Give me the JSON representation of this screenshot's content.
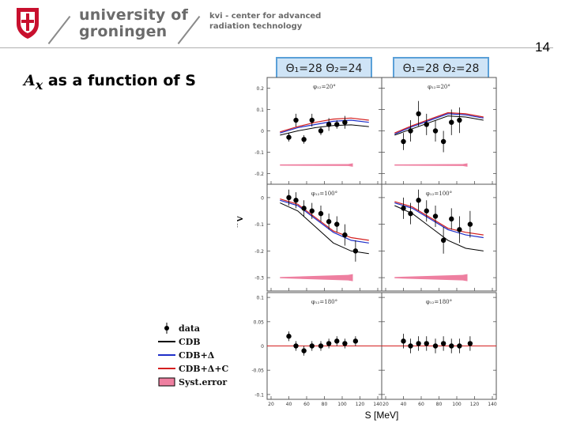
{
  "header": {
    "university_line1": "university of",
    "university_line2": "groningen",
    "kvi_line1": "kvi - center for advanced",
    "kvi_line2": "radiation technology",
    "crest_icon": "university-crest-icon"
  },
  "page_number": "14",
  "title": {
    "symbol": "A",
    "subscript": "x",
    "text": "as a function of S"
  },
  "angle_labels": [
    "Θ₁=28  Θ₂=24",
    "Θ₁=28  Θ₂=28"
  ],
  "legend": [
    {
      "label": "data",
      "kind": "data",
      "color": "#000000"
    },
    {
      "label": "CDB",
      "kind": "line",
      "color": "#000000"
    },
    {
      "label": "CDB+Δ",
      "kind": "line",
      "color": "#1f2fc8"
    },
    {
      "label": "CDB+Δ+C",
      "kind": "line",
      "color": "#d42020"
    },
    {
      "label": "Syst.error",
      "kind": "box",
      "color": "#ee7fa0"
    }
  ],
  "chart_data": {
    "type": "scatter",
    "ylabel": "Aₓ",
    "xlabel": "S [MeV]",
    "xlim": [
      20,
      140
    ],
    "x_ticks": [
      "20",
      "40",
      "60",
      "80",
      "100",
      "120",
      "140"
    ],
    "colors": {
      "data": "#000000",
      "cdb": "#000000",
      "cdb_delta": "#1f2fc8",
      "cdb_delta_c": "#d42020",
      "syst": "#ee7fa0"
    },
    "rows": [
      {
        "phi_label": "φ₁₂=20°",
        "ylim": [
          -0.25,
          0.25
        ],
        "y_ticks": [
          "0.2",
          "0.1",
          "0",
          "-0.1",
          "-0.2"
        ],
        "y_tick_values": [
          0.2,
          0.1,
          0,
          -0.1,
          -0.2
        ],
        "panels": [
          {
            "x": [
              40,
              48,
              57,
              66,
              76,
              85,
              94,
              103
            ],
            "y": [
              -0.03,
              0.05,
              -0.04,
              0.05,
              0.0,
              0.03,
              0.03,
              0.04
            ],
            "err": [
              0.02,
              0.03,
              0.02,
              0.03,
              0.02,
              0.03,
              0.02,
              0.03
            ],
            "x_curve": [
              30,
              50,
              70,
              90,
              110,
              130
            ],
            "cdb": [
              -0.02,
              0.0,
              0.015,
              0.025,
              0.028,
              0.02
            ],
            "cdb_delta": [
              -0.01,
              0.015,
              0.03,
              0.045,
              0.05,
              0.04
            ],
            "cdb_delta_c": [
              -0.005,
              0.02,
              0.04,
              0.055,
              0.06,
              0.05
            ],
            "syst": [
              -0.16,
              -0.16,
              -0.16,
              -0.16,
              -0.16,
              -0.16
            ]
          },
          {
            "x": [
              40,
              48,
              57,
              66,
              76,
              85,
              94,
              103
            ],
            "y": [
              -0.05,
              0.0,
              0.08,
              0.03,
              0.0,
              -0.05,
              0.04,
              0.05
            ],
            "err": [
              0.04,
              0.05,
              0.06,
              0.05,
              0.05,
              0.05,
              0.06,
              0.06
            ],
            "x_curve": [
              30,
              50,
              70,
              90,
              110,
              130
            ],
            "cdb": [
              -0.02,
              0.01,
              0.04,
              0.07,
              0.065,
              0.05
            ],
            "cdb_delta": [
              -0.015,
              0.02,
              0.05,
              0.08,
              0.075,
              0.06
            ],
            "cdb_delta_c": [
              -0.01,
              0.025,
              0.055,
              0.085,
              0.08,
              0.065
            ],
            "syst": [
              -0.16,
              -0.16,
              -0.16,
              -0.16,
              -0.16,
              -0.16
            ]
          }
        ]
      },
      {
        "phi_label": "φ₁₂=100°",
        "ylim": [
          -0.35,
          0.05
        ],
        "y_ticks": [
          "0",
          "-0.1",
          "-0.2",
          "-0.3"
        ],
        "y_tick_values": [
          0,
          -0.1,
          -0.2,
          -0.3
        ],
        "panels": [
          {
            "x": [
              40,
              48,
              57,
              66,
              76,
              85,
              94,
              103,
              115
            ],
            "y": [
              0.0,
              -0.01,
              -0.04,
              -0.05,
              -0.06,
              -0.09,
              -0.1,
              -0.14,
              -0.2
            ],
            "err": [
              0.03,
              0.03,
              0.03,
              0.03,
              0.03,
              0.03,
              0.03,
              0.04,
              0.04
            ],
            "x_curve": [
              30,
              50,
              70,
              90,
              110,
              130
            ],
            "cdb": [
              -0.02,
              -0.05,
              -0.11,
              -0.17,
              -0.2,
              -0.21
            ],
            "cdb_delta": [
              -0.01,
              -0.03,
              -0.08,
              -0.13,
              -0.16,
              -0.17
            ],
            "cdb_delta_c": [
              -0.005,
              -0.025,
              -0.075,
              -0.125,
              -0.15,
              -0.16
            ],
            "syst": [
              -0.3,
              -0.3,
              -0.3,
              -0.3,
              -0.3,
              -0.3
            ]
          },
          {
            "x": [
              40,
              48,
              57,
              66,
              76,
              85,
              94,
              103,
              115
            ],
            "y": [
              -0.04,
              -0.06,
              -0.01,
              -0.05,
              -0.07,
              -0.16,
              -0.08,
              -0.12,
              -0.1
            ],
            "err": [
              0.04,
              0.04,
              0.04,
              0.04,
              0.04,
              0.05,
              0.04,
              0.05,
              0.05
            ],
            "x_curve": [
              30,
              50,
              70,
              90,
              110,
              130
            ],
            "cdb": [
              -0.03,
              -0.06,
              -0.11,
              -0.16,
              -0.19,
              -0.2
            ],
            "cdb_delta": [
              -0.02,
              -0.04,
              -0.08,
              -0.12,
              -0.14,
              -0.15
            ],
            "cdb_delta_c": [
              -0.015,
              -0.035,
              -0.075,
              -0.115,
              -0.13,
              -0.14
            ],
            "syst": [
              -0.3,
              -0.3,
              -0.3,
              -0.3,
              -0.3,
              -0.3
            ]
          }
        ]
      },
      {
        "phi_label": "φ₁₂=180°",
        "ylim": [
          -0.11,
          0.11
        ],
        "y_ticks": [
          "0.1",
          "0.05",
          "0",
          "-0.05",
          "-0.1"
        ],
        "y_tick_values": [
          0.1,
          0.05,
          0,
          -0.05,
          -0.1
        ],
        "panels": [
          {
            "x": [
              40,
              48,
              57,
              66,
              76,
              85,
              94,
              103,
              115
            ],
            "y": [
              0.02,
              0.0,
              -0.01,
              0.0,
              0.0,
              0.005,
              0.01,
              0.005,
              0.01
            ],
            "err": [
              0.01,
              0.01,
              0.01,
              0.01,
              0.01,
              0.01,
              0.01,
              0.01,
              0.01
            ],
            "x_curve": [
              30,
              50,
              70,
              90,
              110,
              130
            ],
            "cdb": [
              0,
              0,
              0,
              0,
              0,
              0
            ],
            "cdb_delta": [
              0,
              0,
              0,
              0,
              0,
              0
            ],
            "cdb_delta_c": [
              0,
              0,
              0,
              0,
              0,
              0
            ],
            "syst": [
              0,
              0,
              0,
              0,
              0,
              0
            ]
          },
          {
            "x": [
              40,
              48,
              57,
              66,
              76,
              85,
              94,
              103,
              115
            ],
            "y": [
              0.01,
              0.0,
              0.005,
              0.005,
              0.0,
              0.005,
              0.0,
              0.0,
              0.005
            ],
            "err": [
              0.015,
              0.015,
              0.015,
              0.015,
              0.015,
              0.015,
              0.015,
              0.015,
              0.015
            ],
            "x_curve": [
              30,
              50,
              70,
              90,
              110,
              130
            ],
            "cdb": [
              0,
              0,
              0,
              0,
              0,
              0
            ],
            "cdb_delta": [
              0,
              0,
              0,
              0,
              0,
              0
            ],
            "cdb_delta_c": [
              0,
              0,
              0,
              0,
              0,
              0
            ],
            "syst": [
              0,
              0,
              0,
              0,
              0,
              0
            ]
          }
        ]
      }
    ]
  }
}
